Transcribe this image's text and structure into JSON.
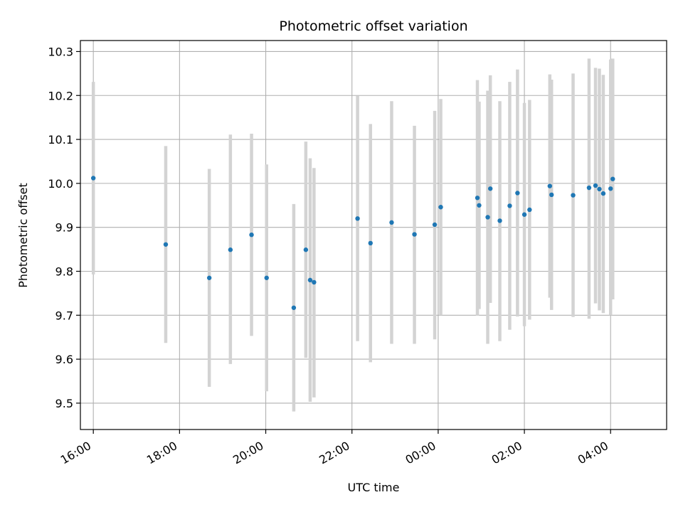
{
  "chart_data": {
    "type": "scatter",
    "title": "Photometric offset variation",
    "xlabel": "UTC time",
    "ylabel": "Photometric offset",
    "x_unit": "UTC hour (values past midnight continue beyond 24)",
    "xlim": [
      15.7,
      29.3
    ],
    "ylim": [
      9.44,
      10.325
    ],
    "grid": true,
    "x_ticks": [
      {
        "value": 16,
        "label": "16:00"
      },
      {
        "value": 18,
        "label": "18:00"
      },
      {
        "value": 20,
        "label": "20:00"
      },
      {
        "value": 22,
        "label": "22:00"
      },
      {
        "value": 24,
        "label": "00:00"
      },
      {
        "value": 26,
        "label": "02:00"
      },
      {
        "value": 28,
        "label": "04:00"
      }
    ],
    "y_ticks": [
      {
        "value": 9.5,
        "label": "9.5"
      },
      {
        "value": 9.6,
        "label": "9.6"
      },
      {
        "value": 9.7,
        "label": "9.7"
      },
      {
        "value": 9.8,
        "label": "9.8"
      },
      {
        "value": 9.9,
        "label": "9.9"
      },
      {
        "value": 10.0,
        "label": "10.0"
      },
      {
        "value": 10.1,
        "label": "10.1"
      },
      {
        "value": 10.2,
        "label": "10.2"
      },
      {
        "value": 10.3,
        "label": "10.3"
      }
    ],
    "colors": {
      "points": "#1f77b4",
      "errorbars": "#d3d3d3",
      "grid": "#b0b0b0"
    },
    "points": [
      {
        "x": 16.0,
        "y": 10.012,
        "lo": 9.793,
        "hi": 10.231
      },
      {
        "x": 17.68,
        "y": 9.861,
        "lo": 9.637,
        "hi": 10.085
      },
      {
        "x": 18.69,
        "y": 9.785,
        "lo": 9.537,
        "hi": 10.033
      },
      {
        "x": 19.18,
        "y": 9.849,
        "lo": 9.589,
        "hi": 10.111
      },
      {
        "x": 19.67,
        "y": 9.883,
        "lo": 9.653,
        "hi": 10.113
      },
      {
        "x": 20.02,
        "y": 9.785,
        "lo": 9.527,
        "hi": 10.043
      },
      {
        "x": 20.65,
        "y": 9.717,
        "lo": 9.481,
        "hi": 9.953
      },
      {
        "x": 20.93,
        "y": 9.849,
        "lo": 9.603,
        "hi": 10.095
      },
      {
        "x": 21.03,
        "y": 9.78,
        "lo": 9.503,
        "hi": 10.057
      },
      {
        "x": 21.12,
        "y": 9.775,
        "lo": 9.513,
        "hi": 10.035
      },
      {
        "x": 22.13,
        "y": 9.92,
        "lo": 9.641,
        "hi": 10.199
      },
      {
        "x": 22.43,
        "y": 9.864,
        "lo": 9.593,
        "hi": 10.135
      },
      {
        "x": 22.92,
        "y": 9.911,
        "lo": 9.635,
        "hi": 10.187
      },
      {
        "x": 23.45,
        "y": 9.884,
        "lo": 9.635,
        "hi": 10.131
      },
      {
        "x": 23.92,
        "y": 9.906,
        "lo": 9.645,
        "hi": 10.165
      },
      {
        "x": 24.06,
        "y": 9.946,
        "lo": 9.7,
        "hi": 10.192
      },
      {
        "x": 24.91,
        "y": 9.967,
        "lo": 9.699,
        "hi": 10.235
      },
      {
        "x": 24.95,
        "y": 9.95,
        "lo": 9.714,
        "hi": 10.186
      },
      {
        "x": 25.15,
        "y": 9.923,
        "lo": 9.635,
        "hi": 10.211
      },
      {
        "x": 25.21,
        "y": 9.988,
        "lo": 9.728,
        "hi": 10.246
      },
      {
        "x": 25.43,
        "y": 9.915,
        "lo": 9.641,
        "hi": 10.187
      },
      {
        "x": 25.66,
        "y": 9.949,
        "lo": 9.667,
        "hi": 10.231
      },
      {
        "x": 25.84,
        "y": 9.978,
        "lo": 9.697,
        "hi": 10.259
      },
      {
        "x": 26.0,
        "y": 9.929,
        "lo": 9.675,
        "hi": 10.183
      },
      {
        "x": 26.12,
        "y": 9.94,
        "lo": 9.69,
        "hi": 10.19
      },
      {
        "x": 26.59,
        "y": 9.994,
        "lo": 9.74,
        "hi": 10.248
      },
      {
        "x": 26.63,
        "y": 9.974,
        "lo": 9.712,
        "hi": 10.236
      },
      {
        "x": 27.13,
        "y": 9.973,
        "lo": 9.696,
        "hi": 10.25
      },
      {
        "x": 27.5,
        "y": 9.99,
        "lo": 9.692,
        "hi": 10.284
      },
      {
        "x": 27.65,
        "y": 9.995,
        "lo": 9.727,
        "hi": 10.263
      },
      {
        "x": 27.74,
        "y": 9.987,
        "lo": 9.711,
        "hi": 10.261
      },
      {
        "x": 27.83,
        "y": 9.977,
        "lo": 9.705,
        "hi": 10.247
      },
      {
        "x": 28.0,
        "y": 9.988,
        "lo": 9.7,
        "hi": 10.282
      },
      {
        "x": 28.05,
        "y": 10.01,
        "lo": 9.736,
        "hi": 10.284
      }
    ]
  }
}
